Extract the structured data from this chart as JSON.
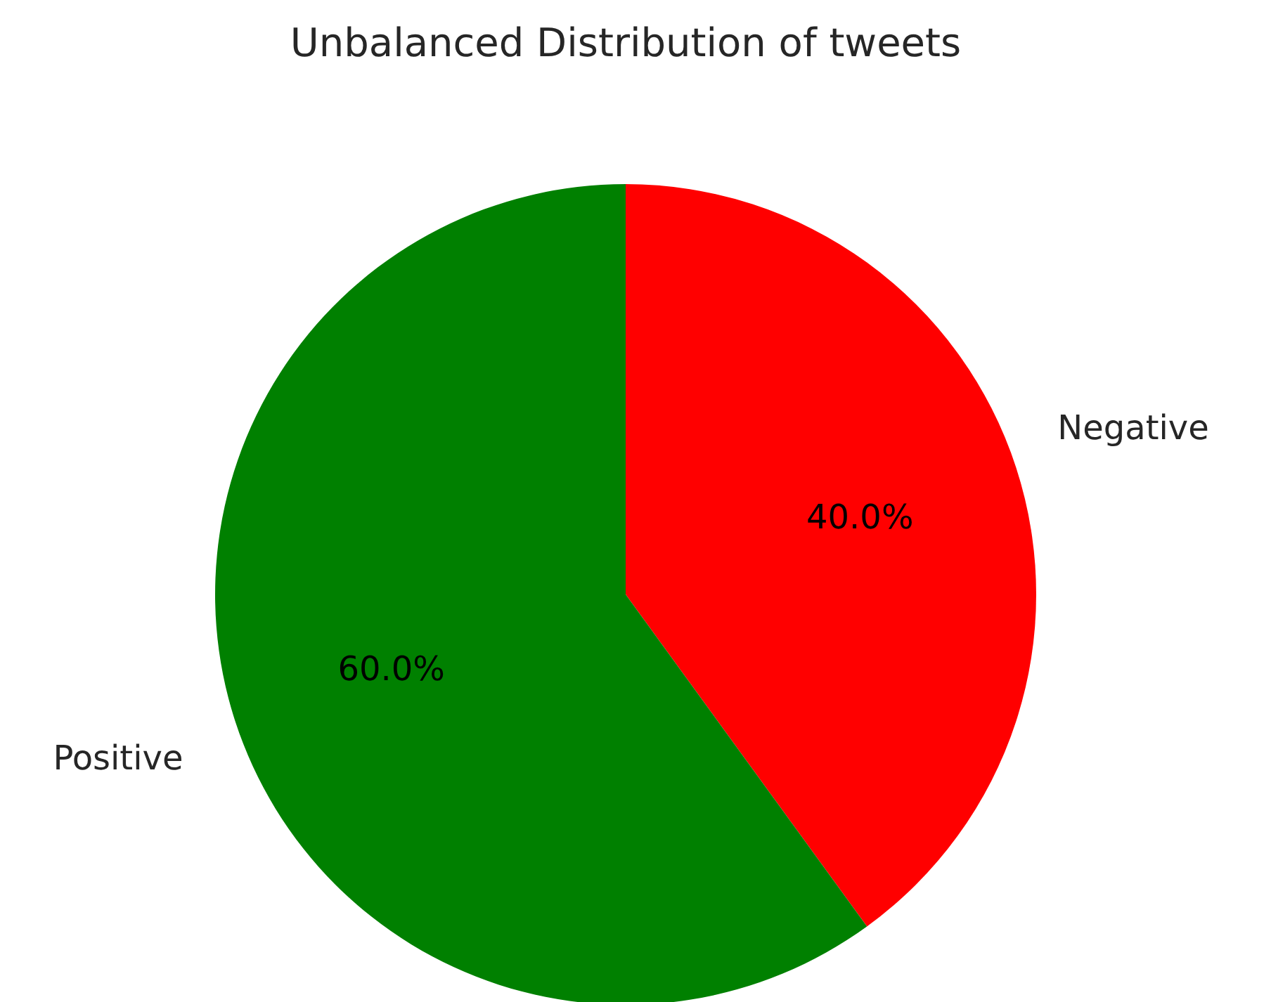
{
  "chart_data": {
    "type": "pie",
    "title": "Unbalanced Distribution of tweets",
    "categories": [
      "Negative",
      "Positive"
    ],
    "values": [
      40,
      60
    ],
    "colors": [
      "#ff0000",
      "#008000"
    ],
    "value_labels": [
      "40.0%",
      "60.0%"
    ]
  }
}
